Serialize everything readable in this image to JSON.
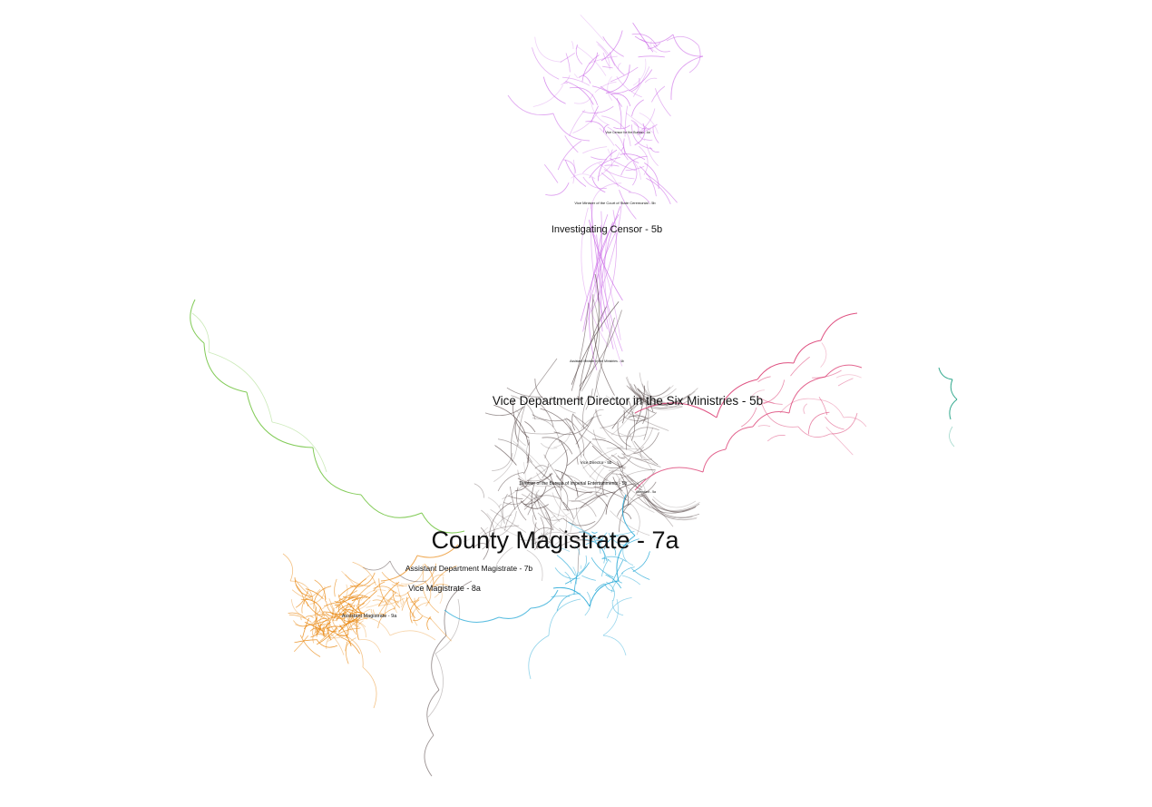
{
  "graph": {
    "clusters": [
      {
        "name": "purple",
        "color": "#c964e6"
      },
      {
        "name": "dark",
        "color": "#4a3a3a"
      },
      {
        "name": "pink",
        "color": "#d9336b"
      },
      {
        "name": "teal",
        "color": "#0f9a7a"
      },
      {
        "name": "green",
        "color": "#6cc23a"
      },
      {
        "name": "orange",
        "color": "#e9870f"
      },
      {
        "name": "cyan",
        "color": "#22a7d6"
      }
    ],
    "labels": {
      "county_magistrate": "County Magistrate - 7a",
      "vice_department_director": "Vice Department Director in the Six Ministries - 5b",
      "investigating_censor": "Investigating Censor - 5b",
      "assistant_department_magistrate": "Assistant Department Magistrate - 7b",
      "vice_magistrate": "Vice Magistrate - 8a",
      "assistant_magistrate": "Assistant Magistrate - 9a",
      "vice_minister_court_state": "Vice Minister of the Court of State Ceremonial - 5b",
      "director_bureau": "Director of the Bureau of Imperial Entertainments - 5b",
      "vice_director": "Vice Director - 5b",
      "assistant_minister": "Assistant Minister in the Ministries - 4b",
      "vice_censor_general": "Vice Censor for the Bureau - 4a",
      "attendant": "Attendant - 5a"
    }
  }
}
